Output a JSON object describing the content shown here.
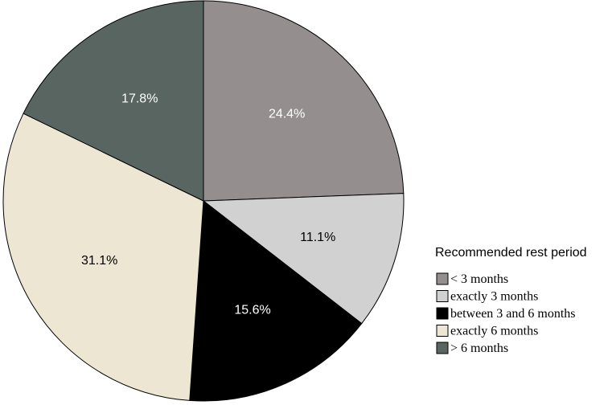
{
  "chart_data": {
    "type": "pie",
    "title": "",
    "legend_title": "Recommended rest period",
    "legend_position": "right",
    "slices": [
      {
        "label": "< 3 months",
        "value": 24.4,
        "display": "24.4%",
        "color": "#948e8e",
        "label_color": "#ffffff"
      },
      {
        "label": "exactly 3 months",
        "value": 11.1,
        "display": "11.1%",
        "color": "#d1d1d1",
        "label_color": "#000000"
      },
      {
        "label": "between 3 and 6 months",
        "value": 15.6,
        "display": "15.6%",
        "color": "#000000",
        "label_color": "#ffffff"
      },
      {
        "label": "exactly 6 months",
        "value": 31.1,
        "display": "31.1%",
        "color": "#ede6d2",
        "label_color": "#000000"
      },
      {
        "label": "> 6 months",
        "value": 17.8,
        "display": "17.8%",
        "color": "#586560",
        "label_color": "#ffffff"
      }
    ]
  }
}
